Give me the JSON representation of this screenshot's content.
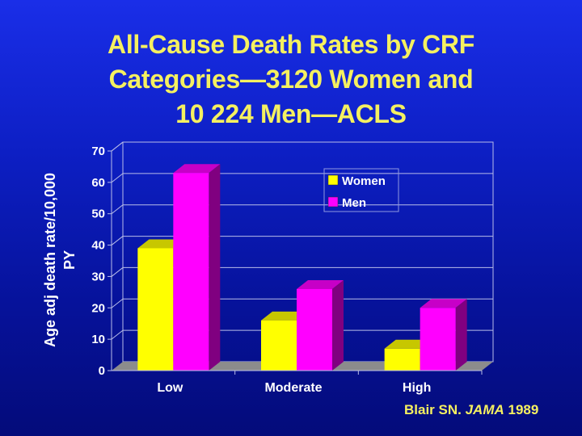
{
  "slide": {
    "title_lines": [
      "All-Cause Death Rates by CRF",
      "Categories—3120 Women and",
      "10 224 Men—ACLS"
    ],
    "citation": {
      "author": "Blair SN.",
      "journal": "JAMA",
      "year": "1989"
    }
  },
  "chart_data": {
    "type": "bar",
    "style": "3d-clustered",
    "title": "All-Cause Death Rates by CRF Categories—3120 Women and 10 224 Men—ACLS",
    "xlabel": "",
    "ylabel_lines": [
      "Age adj death rate/10,000",
      "PY"
    ],
    "categories": [
      "Low",
      "Moderate",
      "High"
    ],
    "series": [
      {
        "name": "Women",
        "color": "#ffff00",
        "values": [
          39,
          16,
          7
        ]
      },
      {
        "name": "Men",
        "color": "#ff00ff",
        "values": [
          63,
          26,
          20
        ]
      }
    ],
    "ylim": [
      0,
      70
    ],
    "yticks": [
      "0",
      "10",
      "20",
      "30",
      "40",
      "50",
      "60",
      "70"
    ],
    "grid": true,
    "legend_position": "top-right"
  },
  "colors": {
    "title": "#f5f060",
    "gridline": "#b8bce8",
    "floor": "#8c8c8c"
  }
}
